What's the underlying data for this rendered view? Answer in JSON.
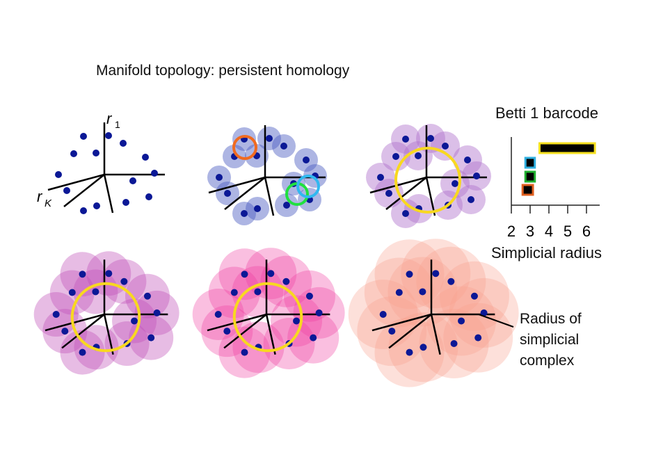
{
  "title": "Manifold topology: persistent homology",
  "axis_labels": {
    "r1": "r",
    "r1_sub": "1",
    "rk": "r",
    "rk_sub": "K"
  },
  "barcode": {
    "title": "Betti 1 barcode",
    "xlabel": "Simplicial radius",
    "ticks": [
      "2",
      "3",
      "4",
      "5",
      "6"
    ],
    "xlim": [
      2,
      6.6
    ],
    "bars": [
      {
        "birth": 3.5,
        "death": 6.45,
        "color": "#f5e020"
      },
      {
        "birth": 2.75,
        "death": 3.25,
        "color": "#30b0e0"
      },
      {
        "birth": 2.75,
        "death": 3.25,
        "color": "#20b030"
      },
      {
        "birth": 2.6,
        "death": 3.15,
        "color": "#e06020"
      }
    ]
  },
  "radius_label": "Radius of simplicial complex",
  "colors": {
    "points": "#0b1896",
    "stage_2": "#4a5cc0",
    "stage_3": "#b070cc",
    "stage_4": "#c050b8",
    "stage_5": "#f03ca0",
    "stage_6": "#f8a090",
    "hole_large": "#f8d820",
    "hole_orange": "#f06a20",
    "hole_green": "#20e040",
    "hole_cyan": "#30b8f0"
  }
}
